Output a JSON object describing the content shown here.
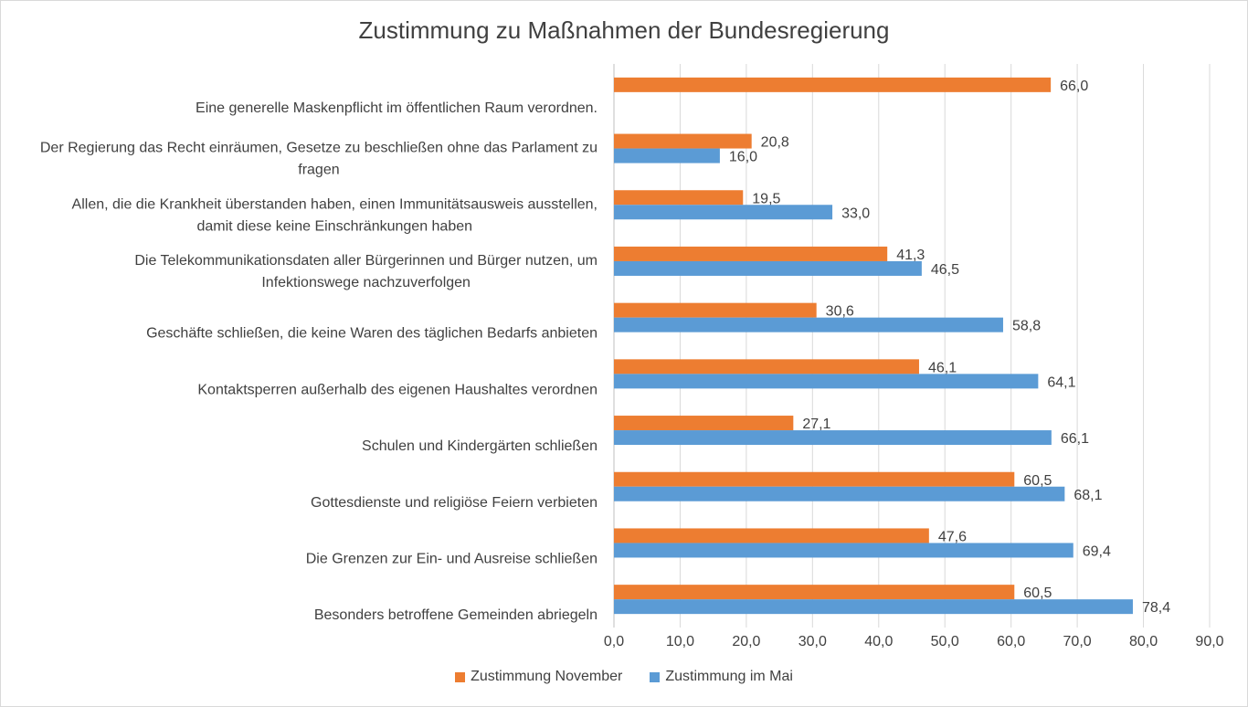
{
  "chart_data": {
    "type": "bar",
    "orientation": "horizontal",
    "title": "Zustimmung zu Maßnahmen der Bundesregierung",
    "categories": [
      [
        "Eine generelle Maskenpflicht im öffentlichen Raum verordnen."
      ],
      [
        "Der Regierung das Recht einräumen, Gesetze zu beschließen ohne das Parlament zu",
        "fragen"
      ],
      [
        "Allen, die die Krankheit überstanden haben, einen Immunitätsausweis ausstellen,",
        "damit diese keine Einschränkungen haben"
      ],
      [
        "Die Telekommunikationsdaten aller Bürgerinnen und Bürger nutzen, um",
        "Infektionswege nachzuverfolgen"
      ],
      [
        "Geschäfte schließen, die keine Waren des täglichen Bedarfs anbieten"
      ],
      [
        "Kontaktsperren außerhalb des eigenen Haushaltes verordnen"
      ],
      [
        "Schulen und Kindergärten schließen"
      ],
      [
        "Gottesdienste und religiöse Feiern verbieten"
      ],
      [
        "Die Grenzen zur Ein- und Ausreise schließen"
      ],
      [
        "Besonders betroffene Gemeinden abriegeln"
      ]
    ],
    "series": [
      {
        "name": "Zustimmung November",
        "color": "#ED7D31",
        "values": [
          66.0,
          20.8,
          19.5,
          41.3,
          30.6,
          46.1,
          27.1,
          60.5,
          47.6,
          60.5
        ],
        "labels": [
          "66,0",
          "20,8",
          "19,5",
          "41,3",
          "30,6",
          "46,1",
          "27,1",
          "60,5",
          "47,6",
          "60,5"
        ]
      },
      {
        "name": "Zustimmung im Mai",
        "color": "#5B9BD5",
        "values": [
          null,
          16.0,
          33.0,
          46.5,
          58.8,
          64.1,
          66.1,
          68.1,
          69.4,
          78.4
        ],
        "labels": [
          "",
          "16,0",
          "33,0",
          "46,5",
          "58,8",
          "64,1",
          "66,1",
          "68,1",
          "69,4",
          "78,4"
        ]
      }
    ],
    "xlim": [
      0,
      90
    ],
    "xticks": [
      0,
      10,
      20,
      30,
      40,
      50,
      60,
      70,
      80,
      90
    ],
    "xtick_labels": [
      "0,0",
      "10,0",
      "20,0",
      "30,0",
      "40,0",
      "50,0",
      "60,0",
      "70,0",
      "80,0",
      "90,0"
    ],
    "grid": true,
    "legend_position": "bottom",
    "legend": [
      {
        "name": "Zustimmung November",
        "color": "#ED7D31"
      },
      {
        "name": "Zustimmung im Mai",
        "color": "#5B9BD5"
      }
    ]
  }
}
